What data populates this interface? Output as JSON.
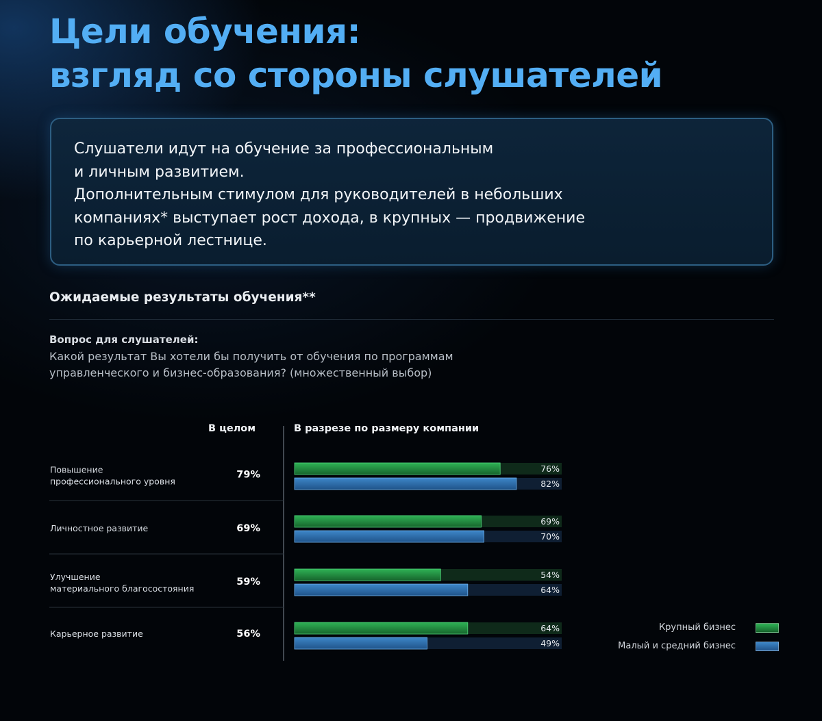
{
  "title": {
    "line1": "Цели обучения:",
    "line2": "взгляд со стороны слушателей"
  },
  "callout": {
    "lines": [
      "Слушатели идут на обучение за профессиональным",
      "и личным развитием.",
      "Дополнительным стимулом для руководителей в небольших",
      "компаниях* выступает рост дохода, в крупных — продвижение",
      "по карьерной лестнице."
    ]
  },
  "section": {
    "title": "Ожидаемые результаты обучения**",
    "question_label": "Вопрос для слушателей:",
    "question_line1": "Какой результат Вы хотели бы получить от обучения по программам",
    "question_line2": "управленческого и бизнес-образования? (множественный выбор)"
  },
  "colors": {
    "title": "#53aef4",
    "large_business": "#1f8a3e",
    "smb": "#2f6fae"
  },
  "chart_data": {
    "type": "bar",
    "orientation": "horizontal",
    "xlim": [
      0,
      100
    ],
    "value_unit": "%",
    "overall_header": "В целом",
    "breakdown_header": "В разрезе по размеру компании",
    "categories": [
      [
        "Повышение",
        "профессионального уровня"
      ],
      [
        "Личностное развитие"
      ],
      [
        "Улучшение",
        "материального благосостояния"
      ],
      [
        "Карьерное развитие"
      ]
    ],
    "overall": [
      79,
      69,
      59,
      56
    ],
    "overall_labels": [
      "79%",
      "69%",
      "59%",
      "56%"
    ],
    "series": [
      {
        "name": "Крупный бизнес",
        "values": [
          76,
          69,
          54,
          64
        ],
        "labels": [
          "76%",
          "69%",
          "54%",
          "64%"
        ],
        "color": "#1f8a3e"
      },
      {
        "name": "Малый и средний бизнес",
        "values": [
          82,
          70,
          64,
          49
        ],
        "labels": [
          "82%",
          "70%",
          "64%",
          "49%"
        ],
        "color": "#2f6fae"
      }
    ],
    "legend_position": "bottom-right"
  }
}
